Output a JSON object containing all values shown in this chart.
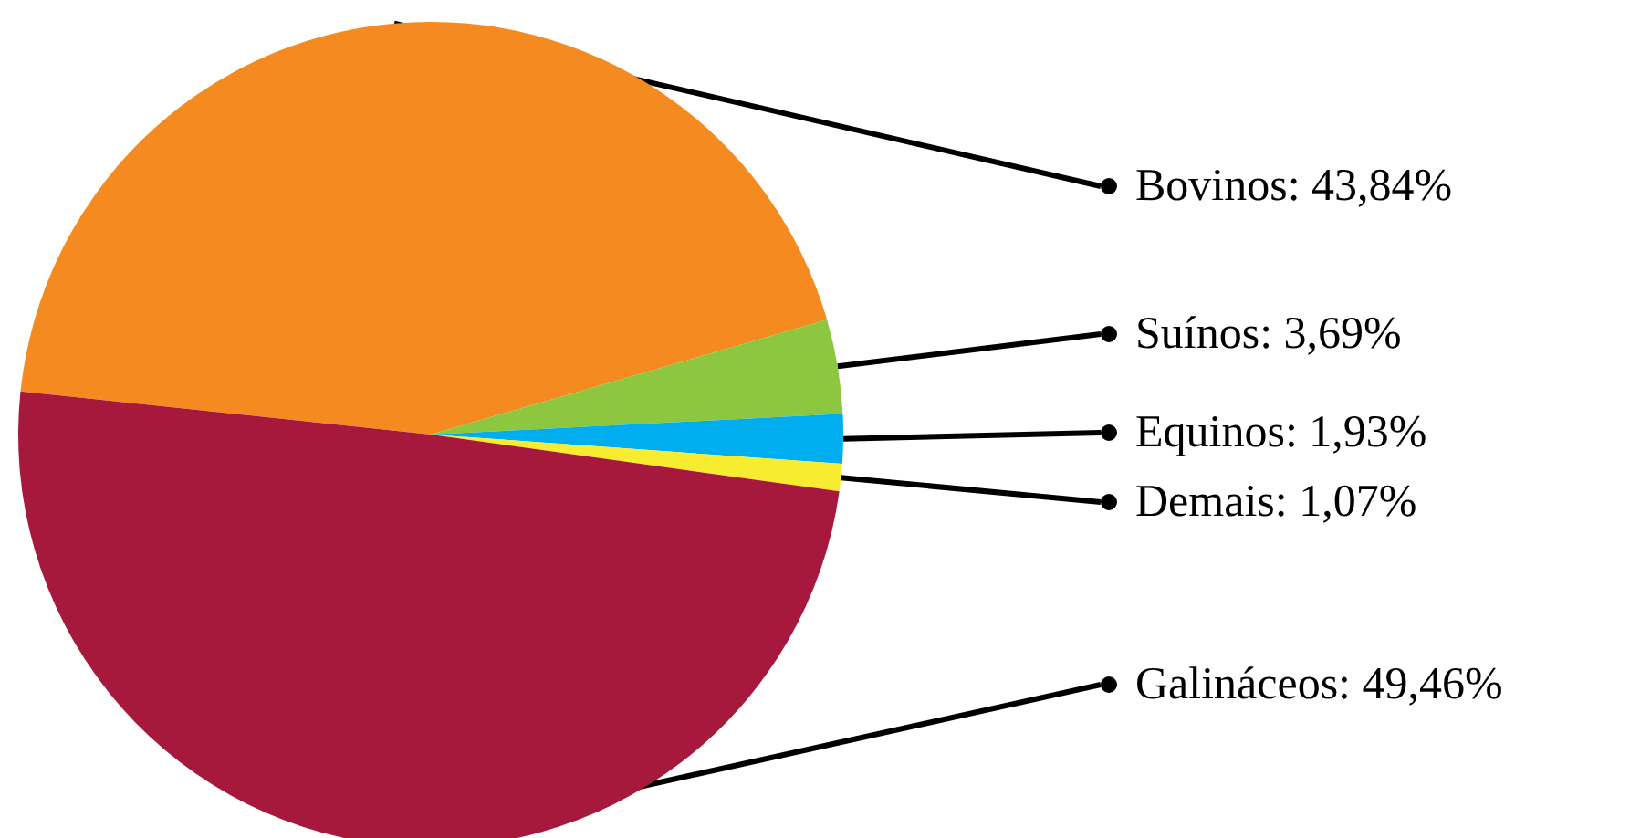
{
  "chart_data": {
    "type": "pie",
    "categories": [
      "Bovinos: 43,84%",
      "Suínos: 3,69%",
      "Equinos: 1,93%",
      "Demais: 1,07%",
      "Galináceos: 49,46%"
    ],
    "values": [
      43.84,
      3.69,
      1.93,
      1.07,
      49.46
    ],
    "colors": [
      "#f58b20",
      "#8dc63f",
      "#00aeef",
      "#f7ec2f",
      "#a6193c"
    ],
    "legend": false
  }
}
